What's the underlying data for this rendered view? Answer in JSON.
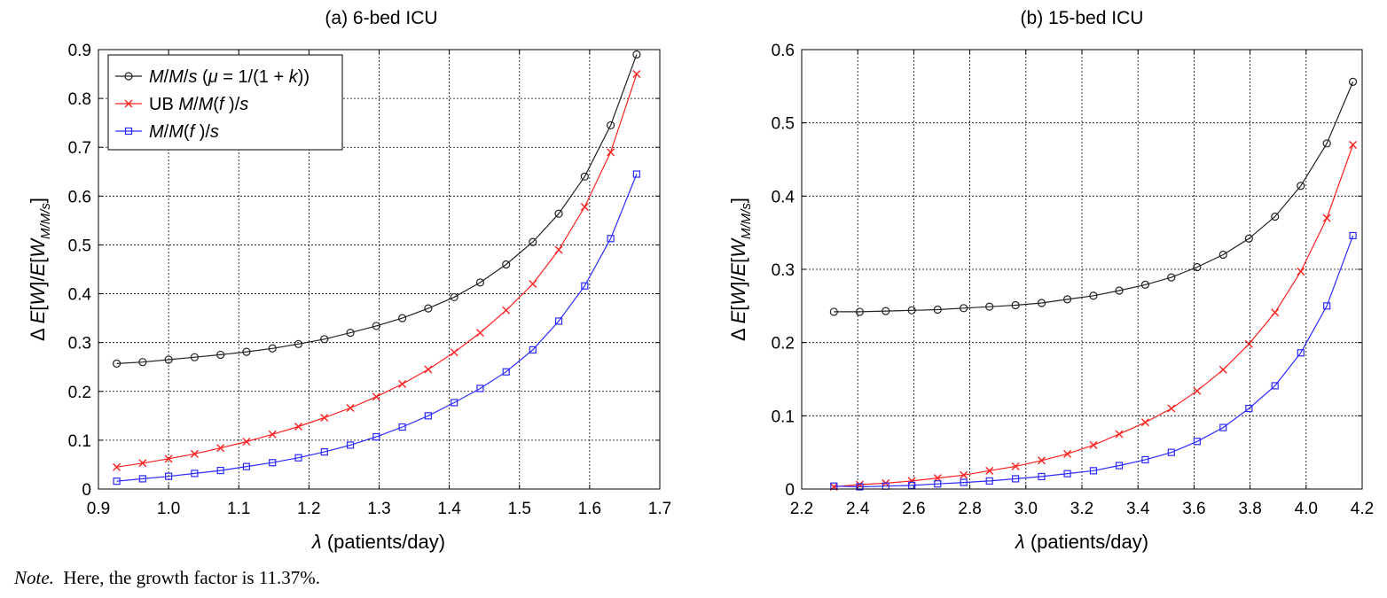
{
  "colors": {
    "black_series": "#222222",
    "red_series": "#ff2020",
    "blue_series": "#2a2aff",
    "grid": "#000000"
  },
  "note": {
    "label": "Note.",
    "text": "Here, the growth factor is 11.37%."
  },
  "chart_data": [
    {
      "type": "line",
      "title": "(a) 6-bed ICU",
      "xlabel": "λ (patients/day)",
      "ylabel": "Δ E[W]/E[W_{M/M/s}]",
      "xlim": [
        0.9,
        1.7
      ],
      "ylim": [
        0,
        0.9
      ],
      "xticks": [
        "0.9",
        "1.0",
        "1.1",
        "1.2",
        "1.3",
        "1.4",
        "1.5",
        "1.6",
        "1.7"
      ],
      "yticks": [
        "0",
        "0.1",
        "0.2",
        "0.3",
        "0.4",
        "0.5",
        "0.6",
        "0.7",
        "0.8",
        "0.9"
      ],
      "grid": true,
      "legend_position": "top-left",
      "legend": [
        "M/M/s (μ = 1/(1 + k))",
        "UB M/M(f)/s",
        "M/M(f)/s"
      ],
      "x": [
        0.926,
        0.963,
        1.0,
        1.037,
        1.074,
        1.111,
        1.148,
        1.185,
        1.222,
        1.259,
        1.296,
        1.333,
        1.37,
        1.407,
        1.444,
        1.481,
        1.519,
        1.556,
        1.593,
        1.63,
        1.667
      ],
      "series": [
        {
          "name": "M/M/s (μ = 1/(1 + k))",
          "marker": "circle",
          "color": "#222222",
          "values": [
            0.257,
            0.26,
            0.265,
            0.27,
            0.275,
            0.281,
            0.288,
            0.297,
            0.307,
            0.32,
            0.334,
            0.35,
            0.37,
            0.393,
            0.423,
            0.46,
            0.506,
            0.564,
            0.64,
            0.745,
            0.89
          ]
        },
        {
          "name": "UB M/M(f)/s",
          "marker": "x",
          "color": "#ff2020",
          "values": [
            0.045,
            0.053,
            0.062,
            0.072,
            0.084,
            0.097,
            0.112,
            0.128,
            0.146,
            0.166,
            0.189,
            0.215,
            0.245,
            0.28,
            0.32,
            0.366,
            0.42,
            0.49,
            0.578,
            0.69,
            0.85
          ]
        },
        {
          "name": "M/M(f)/s",
          "marker": "square",
          "color": "#2a2aff",
          "values": [
            0.016,
            0.021,
            0.026,
            0.032,
            0.038,
            0.046,
            0.054,
            0.064,
            0.076,
            0.09,
            0.107,
            0.127,
            0.15,
            0.177,
            0.206,
            0.24,
            0.285,
            0.344,
            0.416,
            0.513,
            0.645
          ]
        }
      ]
    },
    {
      "type": "line",
      "title": "(b) 15-bed ICU",
      "xlabel": "λ (patients/day)",
      "ylabel": "Δ E[W]/E[W_{M/M/s}]",
      "xlim": [
        2.2,
        4.2
      ],
      "ylim": [
        0,
        0.6
      ],
      "xticks": [
        "2.2",
        "2.4",
        "2.6",
        "2.8",
        "3.0",
        "3.2",
        "3.4",
        "3.6",
        "3.8",
        "4.0",
        "4.2"
      ],
      "yticks": [
        "0",
        "0.1",
        "0.2",
        "0.3",
        "0.4",
        "0.5",
        "0.6"
      ],
      "grid": true,
      "x": [
        2.315,
        2.407,
        2.5,
        2.593,
        2.685,
        2.778,
        2.87,
        2.963,
        3.056,
        3.148,
        3.241,
        3.333,
        3.426,
        3.519,
        3.611,
        3.704,
        3.796,
        3.889,
        3.981,
        4.074,
        4.167
      ],
      "series": [
        {
          "name": "M/M/s (μ = 1/(1 + k))",
          "marker": "circle",
          "color": "#222222",
          "values": [
            0.242,
            0.242,
            0.243,
            0.244,
            0.245,
            0.247,
            0.249,
            0.251,
            0.254,
            0.259,
            0.264,
            0.271,
            0.279,
            0.289,
            0.303,
            0.32,
            0.342,
            0.372,
            0.414,
            0.472,
            0.556
          ]
        },
        {
          "name": "UB M/M(f)/s",
          "marker": "x",
          "color": "#ff2020",
          "values": [
            0.003,
            0.006,
            0.008,
            0.011,
            0.015,
            0.019,
            0.025,
            0.031,
            0.039,
            0.048,
            0.06,
            0.075,
            0.091,
            0.11,
            0.134,
            0.163,
            0.198,
            0.241,
            0.297,
            0.37,
            0.47
          ]
        },
        {
          "name": "M/M(f)/s",
          "marker": "square",
          "color": "#2a2aff",
          "values": [
            0.004,
            0.003,
            0.004,
            0.005,
            0.007,
            0.009,
            0.011,
            0.014,
            0.017,
            0.021,
            0.025,
            0.032,
            0.04,
            0.05,
            0.065,
            0.084,
            0.11,
            0.141,
            0.186,
            0.25,
            0.346
          ]
        }
      ]
    }
  ]
}
